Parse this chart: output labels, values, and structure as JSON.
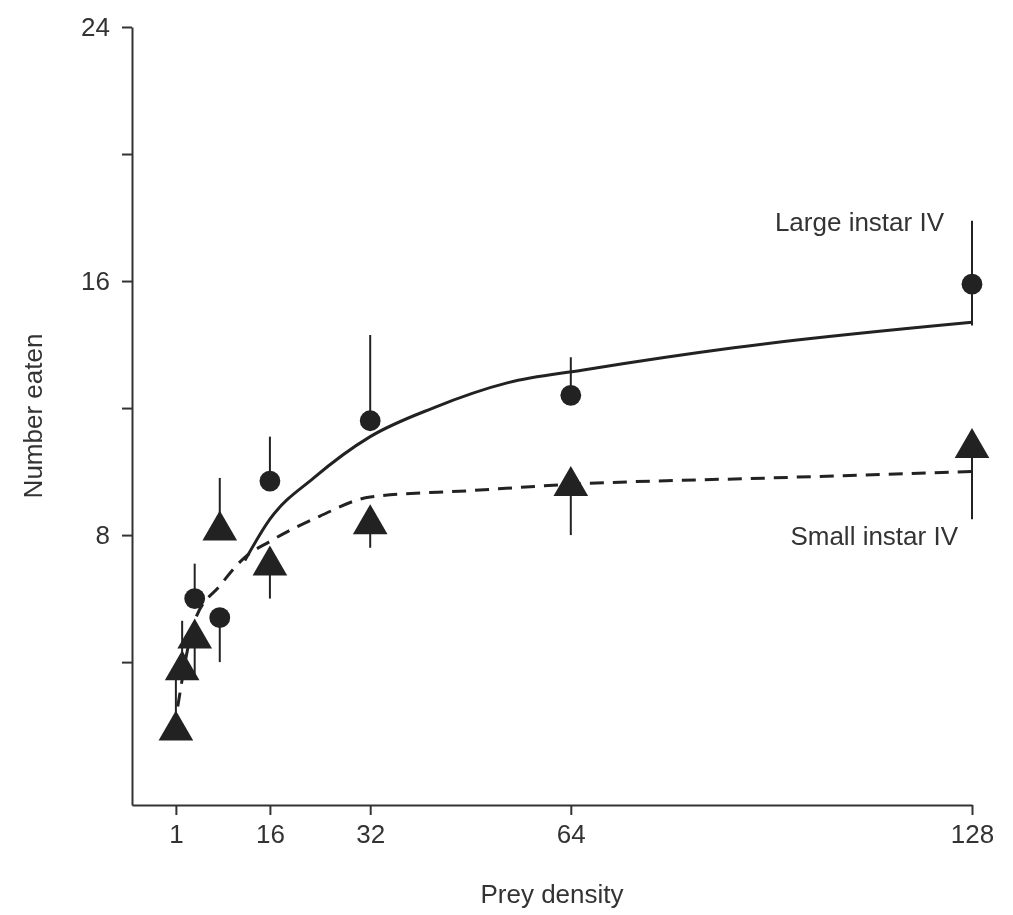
{
  "chart_data": {
    "type": "scatter",
    "xlabel": "Prey density",
    "ylabel": "Number eaten",
    "xlim": [
      -6,
      128
    ],
    "xticks": [
      1,
      16,
      32,
      64,
      128
    ],
    "ylim": [
      -0.5,
      24
    ],
    "yticks": [
      {
        "value": 4,
        "label": null
      },
      8,
      {
        "value": 12,
        "label": null
      },
      16,
      {
        "value": 20,
        "label": null
      },
      24
    ],
    "grid": false,
    "legend": false,
    "series": [
      {
        "name": "Large instar IV",
        "marker": "circle",
        "color": "#222222",
        "x": [
          4,
          8,
          16,
          32,
          64,
          128
        ],
        "values": [
          6.0,
          5.4,
          9.7,
          11.6,
          12.4,
          15.9
        ],
        "errors": [
          [
            6.0,
            7.1
          ],
          [
            4.0,
            5.4
          ],
          [
            9.7,
            11.1
          ],
          [
            11.6,
            14.3
          ],
          [
            12.4,
            13.6
          ],
          [
            14.6,
            17.9
          ]
        ]
      },
      {
        "name": "Small instar IV",
        "marker": "triangle",
        "color": "#222222",
        "x": [
          1,
          2,
          4,
          8,
          16,
          32,
          64,
          128
        ],
        "values": [
          2.0,
          3.9,
          4.9,
          8.3,
          7.2,
          8.5,
          9.7,
          10.9
        ],
        "errors": [
          [
            2.0,
            3.5
          ],
          [
            3.9,
            5.3
          ],
          [
            3.6,
            4.9
          ],
          [
            8.3,
            9.8
          ],
          [
            6.0,
            7.2
          ],
          [
            7.6,
            8.5
          ],
          [
            8.0,
            9.7
          ],
          [
            8.5,
            10.9
          ]
        ]
      },
      {
        "type": "line",
        "line_style": "solid",
        "color": "#222222",
        "x": [
          12,
          16,
          23,
          32,
          42,
          54,
          66,
          90,
          128
        ],
        "values": [
          7.2,
          8.5,
          9.8,
          11.1,
          12.0,
          12.8,
          13.2,
          13.9,
          14.7
        ]
      },
      {
        "type": "line",
        "line_style": "dashed",
        "color": "#222222",
        "x": [
          1.3,
          4,
          8,
          12,
          16,
          24,
          32,
          48,
          64,
          96,
          128
        ],
        "values": [
          2.6,
          5.3,
          6.4,
          7.3,
          7.8,
          8.6,
          9.2,
          9.4,
          9.6,
          9.8,
          10.0
        ]
      }
    ]
  }
}
